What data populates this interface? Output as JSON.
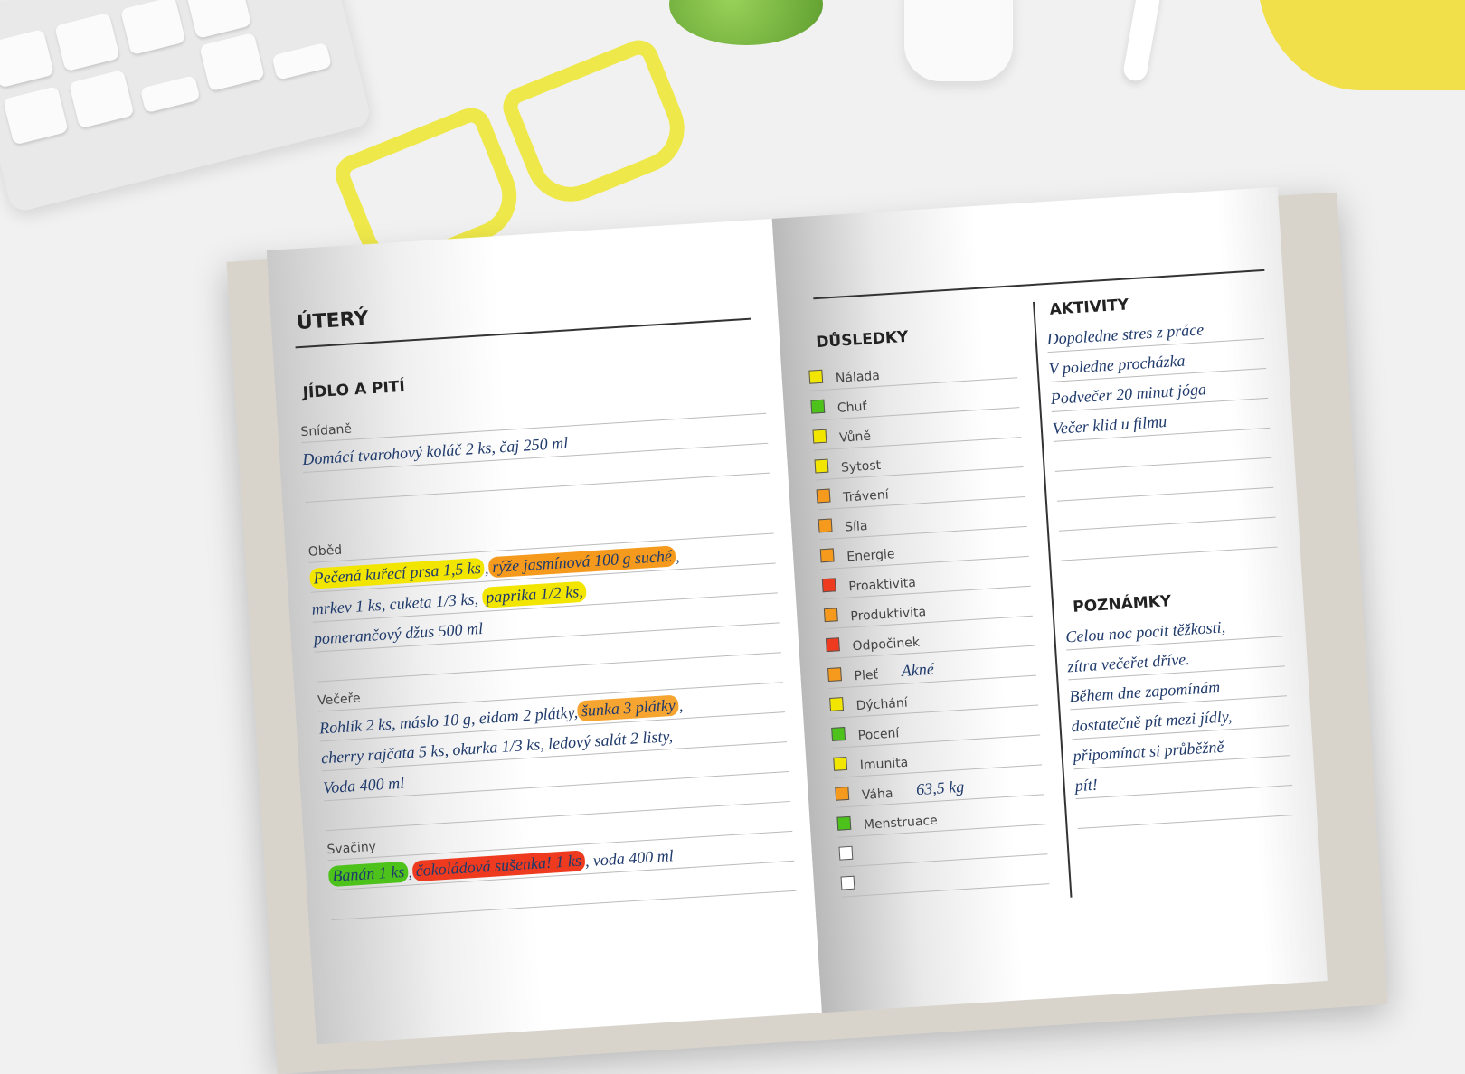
{
  "colors": {
    "yellow": "#f2e600",
    "orange": "#f59a1c",
    "red": "#ee3b1f",
    "green": "#4cc21a",
    "ink": "#1f3a6b",
    "empty": "#ffffff"
  },
  "left": {
    "day": "ÚTERÝ",
    "section": "JÍDLO A PITÍ",
    "breakfast": {
      "label": "Snídaně",
      "lines": [
        "Domácí tvarohový koláč 2 ks, čaj 250 ml"
      ]
    },
    "lunch": {
      "label": "Oběd",
      "l1a": "Pečená kuřecí prsa 1,5 ks",
      "l1b": "rýže jasmínová 100 g suché",
      "l2a": "mrkev 1 ks, cuketa 1/3 ks,",
      "l2b": "paprika 1/2 ks,",
      "l3": "pomerančový džus 500 ml"
    },
    "dinner": {
      "label": "Večeře",
      "l1a": "Rohlík 2 ks, máslo 10 g, eidam 2 plátky,",
      "l1b": "šunka 3 plátky",
      "l2": "cherry rajčata 5 ks, okurka 1/3 ks, ledový salát 2 listy,",
      "l3": "Voda 400 ml"
    },
    "snacks": {
      "label": "Svačiny",
      "a": "Banán 1 ks",
      "b": "čokoládová sušenka! 1 ks",
      "c": ", voda 400 ml"
    }
  },
  "right": {
    "consequences_title": "DŮSLEDKY",
    "consequences": [
      {
        "label": "Nálada",
        "color": "yellow"
      },
      {
        "label": "Chuť",
        "color": "green"
      },
      {
        "label": "Vůně",
        "color": "yellow"
      },
      {
        "label": "Sytost",
        "color": "yellow"
      },
      {
        "label": "Trávení",
        "color": "orange"
      },
      {
        "label": "Síla",
        "color": "orange"
      },
      {
        "label": "Energie",
        "color": "orange"
      },
      {
        "label": "Proaktivita",
        "color": "red"
      },
      {
        "label": "Produktivita",
        "color": "orange"
      },
      {
        "label": "Odpočinek",
        "color": "red"
      },
      {
        "label": "Pleť",
        "color": "orange",
        "value": "Akné"
      },
      {
        "label": "Dýchání",
        "color": "yellow"
      },
      {
        "label": "Pocení",
        "color": "green"
      },
      {
        "label": "Imunita",
        "color": "yellow"
      },
      {
        "label": "Váha",
        "color": "orange",
        "value": "63,5 kg"
      },
      {
        "label": "Menstruace",
        "color": "green"
      },
      {
        "label": "",
        "color": "empty"
      },
      {
        "label": "",
        "color": "empty"
      }
    ],
    "activities_title": "AKTIVITY",
    "activities": [
      "Dopoledne stres z práce",
      "V poledne procházka",
      "Podvečer 20 minut jóga",
      "Večer klid u filmu",
      "",
      "",
      "",
      ""
    ],
    "notes_title": "POZNÁMKY",
    "notes": [
      "Celou noc pocit těžkosti,",
      "zítra večeřet dříve.",
      "Během dne zapomínám",
      "dostatečně pít mezi jídly,",
      "připomínat si průběžně",
      "pít!",
      ""
    ]
  }
}
